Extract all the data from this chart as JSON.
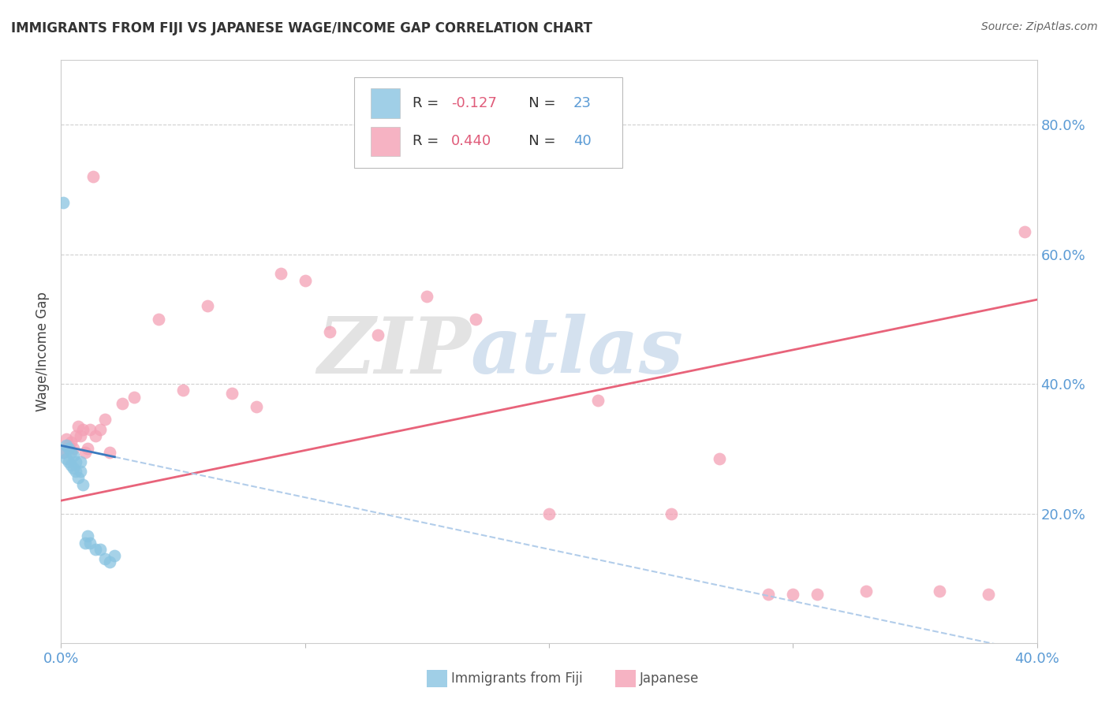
{
  "title": "IMMIGRANTS FROM FIJI VS JAPANESE WAGE/INCOME GAP CORRELATION CHART",
  "source": "Source: ZipAtlas.com",
  "ylabel": "Wage/Income Gap",
  "xlim": [
    0.0,
    0.4
  ],
  "ylim": [
    0.0,
    0.9
  ],
  "y_ticks_right": [
    0.2,
    0.4,
    0.6,
    0.8
  ],
  "y_tick_labels_right": [
    "20.0%",
    "40.0%",
    "60.0%",
    "80.0%"
  ],
  "background_color": "#ffffff",
  "watermark_zip": "ZIP",
  "watermark_atlas": "atlas",
  "fiji_color": "#89c4e1",
  "japanese_color": "#f4a0b5",
  "fiji_line_color": "#3a7abf",
  "fiji_line_dash_color": "#aac8e8",
  "japanese_line_color": "#e8637a",
  "fiji_R": -0.127,
  "fiji_N": 23,
  "japanese_R": 0.44,
  "japanese_N": 40,
  "fiji_points_x": [
    0.001,
    0.002,
    0.002,
    0.003,
    0.003,
    0.004,
    0.004,
    0.005,
    0.005,
    0.006,
    0.006,
    0.007,
    0.008,
    0.008,
    0.009,
    0.01,
    0.011,
    0.012,
    0.014,
    0.016,
    0.018,
    0.02,
    0.022
  ],
  "fiji_points_y": [
    0.295,
    0.285,
    0.305,
    0.28,
    0.3,
    0.275,
    0.295,
    0.27,
    0.29,
    0.265,
    0.28,
    0.255,
    0.265,
    0.28,
    0.245,
    0.155,
    0.165,
    0.155,
    0.145,
    0.145,
    0.13,
    0.125,
    0.135
  ],
  "fiji_outlier_x": [
    0.001
  ],
  "fiji_outlier_y": [
    0.68
  ],
  "japanese_points_x": [
    0.001,
    0.002,
    0.003,
    0.004,
    0.005,
    0.006,
    0.007,
    0.008,
    0.009,
    0.01,
    0.011,
    0.012,
    0.014,
    0.016,
    0.018,
    0.02,
    0.025,
    0.03,
    0.04,
    0.05,
    0.06,
    0.07,
    0.08,
    0.09,
    0.1,
    0.11,
    0.13,
    0.15,
    0.17,
    0.2,
    0.22,
    0.25,
    0.27,
    0.29,
    0.3,
    0.31,
    0.33,
    0.36,
    0.38,
    0.395
  ],
  "japanese_points_y": [
    0.295,
    0.315,
    0.305,
    0.31,
    0.3,
    0.32,
    0.335,
    0.32,
    0.33,
    0.295,
    0.3,
    0.33,
    0.32,
    0.33,
    0.345,
    0.295,
    0.37,
    0.38,
    0.5,
    0.39,
    0.52,
    0.385,
    0.365,
    0.57,
    0.56,
    0.48,
    0.475,
    0.535,
    0.5,
    0.2,
    0.375,
    0.2,
    0.285,
    0.075,
    0.075,
    0.075,
    0.08,
    0.08,
    0.075,
    0.635
  ],
  "japanese_outlier_x": [
    0.013
  ],
  "japanese_outlier_y": [
    0.72
  ]
}
